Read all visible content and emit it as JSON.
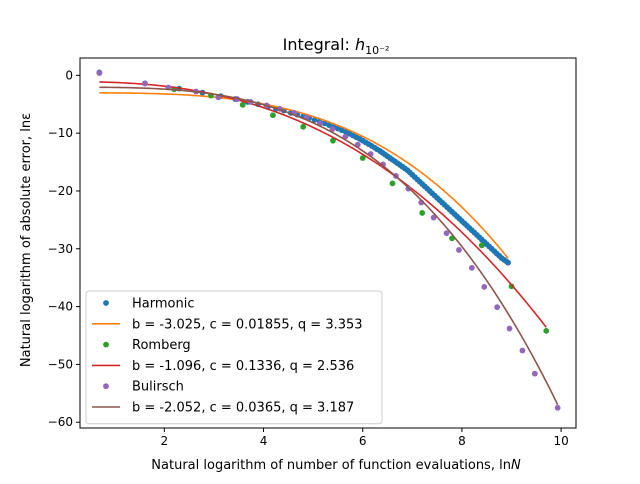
{
  "chart_data": {
    "type": "scatter",
    "title": "Integral: ",
    "title_math": "h",
    "title_sub": "10⁻²",
    "xlabel": "Natural logarithm of number of function evaluations, ln",
    "xlabel_var": "N",
    "ylabel": "Natural logarithm of absolute error, lnε",
    "xlim": [
      0.3,
      10.3
    ],
    "ylim": [
      -61,
      3
    ],
    "xticks": [
      2,
      4,
      6,
      8,
      10
    ],
    "yticks": [
      0,
      -10,
      -20,
      -30,
      -40,
      -50,
      -60
    ],
    "grid": false,
    "legend_position": "lower-left",
    "series": [
      {
        "name": "Harmonic",
        "kind": "points",
        "color": "#1f77b4",
        "x": [
          0.69,
          1.61,
          2.3,
          2.77,
          3.14,
          3.43,
          3.68,
          3.89,
          4.09,
          4.25,
          4.41,
          4.55,
          4.68,
          4.8,
          4.92,
          5.03,
          5.13,
          5.23,
          5.32,
          5.41,
          5.5,
          5.58,
          5.66,
          5.73,
          5.8,
          5.87,
          5.94,
          6.0,
          6.06,
          6.12,
          6.18,
          6.24,
          6.29,
          6.35,
          6.4,
          6.45,
          6.5,
          6.55,
          6.6,
          6.65,
          6.7,
          6.75,
          6.8,
          6.85,
          6.9,
          6.95,
          7.0,
          7.05,
          7.1,
          7.15,
          7.2,
          7.25,
          7.3,
          7.35,
          7.4,
          7.45,
          7.5,
          7.55,
          7.6,
          7.65,
          7.7,
          7.75,
          7.8,
          7.85,
          7.9,
          7.95,
          8.0,
          8.05,
          8.1,
          8.15,
          8.2,
          8.25,
          8.3,
          8.35,
          8.4,
          8.45,
          8.5,
          8.55,
          8.6,
          8.65,
          8.7,
          8.75,
          8.8,
          8.85,
          8.9,
          8.93
        ],
        "y": [
          0.5,
          -1.4,
          -2.3,
          -3.0,
          -3.6,
          -4.1,
          -4.6,
          -5.0,
          -5.4,
          -5.8,
          -6.1,
          -6.5,
          -6.8,
          -7.1,
          -7.4,
          -7.7,
          -8.0,
          -8.3,
          -8.6,
          -8.9,
          -9.2,
          -9.5,
          -9.8,
          -10.1,
          -10.4,
          -10.7,
          -11.0,
          -11.3,
          -11.6,
          -11.9,
          -12.2,
          -12.5,
          -12.8,
          -13.1,
          -13.4,
          -13.7,
          -14.0,
          -14.3,
          -14.6,
          -14.9,
          -15.2,
          -15.5,
          -15.8,
          -16.1,
          -16.4,
          -16.8,
          -17.2,
          -17.6,
          -18.0,
          -18.4,
          -18.8,
          -19.2,
          -19.6,
          -20.0,
          -20.4,
          -20.8,
          -21.2,
          -21.6,
          -22.0,
          -22.4,
          -22.8,
          -23.2,
          -23.6,
          -24.0,
          -24.4,
          -24.8,
          -25.2,
          -25.6,
          -26.0,
          -26.4,
          -26.8,
          -27.2,
          -27.6,
          -28.0,
          -28.4,
          -28.8,
          -29.2,
          -29.6,
          -30.0,
          -30.4,
          -30.8,
          -31.2,
          -31.6,
          -31.9,
          -32.2,
          -32.4
        ]
      },
      {
        "name": "b = -3.025, c = 0.01855, q = 3.353",
        "kind": "line",
        "color": "#ff7f0e",
        "b": -3.025,
        "c": 0.01855,
        "q": 3.353,
        "x_range": [
          0.69,
          8.93
        ]
      },
      {
        "name": "Romberg",
        "kind": "points",
        "color": "#2ca02c",
        "x": [
          2.2,
          2.94,
          3.58,
          4.19,
          4.8,
          5.4,
          6.0,
          6.6,
          7.2,
          7.8,
          8.4,
          9.0,
          9.7
        ],
        "y": [
          -2.4,
          -3.5,
          -5.1,
          -6.9,
          -8.9,
          -11.3,
          -14.3,
          -18.7,
          -23.8,
          -28.2,
          -29.4,
          -36.5,
          -44.2
        ]
      },
      {
        "name": "b = -1.096, c = 0.1336, q = 2.536",
        "kind": "line",
        "color": "#d62728",
        "b": -1.096,
        "c": 0.1336,
        "q": 2.536,
        "x_range": [
          0.69,
          9.7
        ]
      },
      {
        "name": "Bulirsch",
        "kind": "points",
        "color": "#9467bd",
        "x": [
          0.69,
          1.61,
          2.08,
          2.64,
          3.09,
          3.47,
          3.74,
          4.06,
          4.33,
          4.62,
          4.87,
          5.14,
          5.39,
          5.65,
          5.9,
          6.16,
          6.41,
          6.67,
          6.92,
          7.18,
          7.43,
          7.69,
          7.94,
          8.2,
          8.45,
          8.71,
          8.96,
          9.22,
          9.47,
          9.93
        ],
        "y": [
          0.4,
          -1.4,
          -2.1,
          -2.8,
          -3.8,
          -4.1,
          -4.6,
          -5.2,
          -5.8,
          -6.5,
          -7.3,
          -8.3,
          -9.3,
          -10.6,
          -12.0,
          -13.6,
          -15.4,
          -17.4,
          -19.6,
          -22.0,
          -24.6,
          -27.3,
          -30.2,
          -33.3,
          -36.6,
          -40.1,
          -43.8,
          -47.6,
          -51.6,
          -57.5
        ]
      },
      {
        "name": "b = -2.052, c = 0.0365, q = 3.187",
        "kind": "line",
        "color": "#8c564b",
        "b": -2.052,
        "c": 0.0365,
        "q": 3.187,
        "x_range": [
          0.69,
          9.93
        ]
      }
    ]
  }
}
